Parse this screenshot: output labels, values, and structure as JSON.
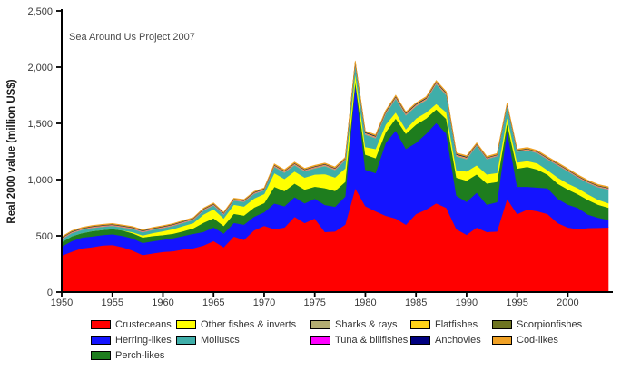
{
  "annotation": "Sea Around Us Project 2007",
  "colors": {
    "background": "#FFFFFF",
    "axis": "#000000",
    "tick_text": "#3A3A3A",
    "annotation_text": "#4A4A4A"
  },
  "chart_data": {
    "type": "area",
    "stacked": true,
    "title": "",
    "xlabel": "",
    "ylabel": "Real 2000 value (million US$)",
    "x_start": 1950,
    "x_end": 2004,
    "ylim": [
      0,
      2500
    ],
    "grid": false,
    "legend_position": "bottom",
    "y_tick_values": [
      0,
      500,
      1000,
      1500,
      2000,
      2500
    ],
    "y_tick_labels": [
      "0",
      "500",
      "1,000",
      "1,500",
      "2,000",
      "2,500"
    ],
    "x_tick_values": [
      1950,
      1955,
      1960,
      1965,
      1970,
      1975,
      1980,
      1985,
      1990,
      1995,
      2000
    ],
    "x_tick_labels": [
      "1950",
      "1955",
      "1960",
      "1965",
      "1970",
      "1975",
      "1980",
      "1985",
      "1990",
      "1995",
      "2000"
    ],
    "legend_columns": [
      [
        0,
        1,
        2
      ],
      [
        3,
        4
      ],
      [
        5,
        6
      ],
      [
        7,
        8
      ],
      [
        9,
        10
      ]
    ],
    "series": [
      {
        "name": "Crusteceans",
        "color": "#FF0000",
        "values": [
          325,
          360,
          390,
          400,
          415,
          420,
          400,
          370,
          330,
          345,
          358,
          364,
          380,
          390,
          415,
          455,
          400,
          495,
          465,
          550,
          590,
          560,
          575,
          670,
          615,
          655,
          535,
          540,
          600,
          925,
          765,
          720,
          680,
          655,
          600,
          695,
          735,
          790,
          750,
          560,
          510,
          575,
          535,
          540,
          830,
          695,
          735,
          720,
          695,
          615,
          575,
          560,
          570,
          572,
          575
        ]
      },
      {
        "name": "Herring-likes",
        "color": "#1414FF",
        "values": [
          80,
          95,
          95,
          95,
          92,
          95,
          100,
          108,
          108,
          108,
          108,
          116,
          119,
          129,
          121,
          121,
          121,
          121,
          135,
          121,
          121,
          229,
          189,
          175,
          175,
          176,
          240,
          220,
          250,
          930,
          323,
          338,
          647,
          782,
          674,
          633,
          674,
          715,
          660,
          297,
          293,
          310,
          243,
          260,
          606,
          242,
          202,
          210,
          229,
          216,
          203,
          189,
          120,
          90,
          68
        ]
      },
      {
        "name": "Perch-likes",
        "color": "#1E7D1E",
        "values": [
          41,
          42,
          40,
          48,
          46,
          46,
          49,
          46,
          48,
          46,
          41,
          40,
          43,
          49,
          81,
          81,
          68,
          81,
          81,
          81,
          81,
          148,
          135,
          121,
          122,
          107,
          150,
          140,
          130,
          25,
          135,
          134,
          95,
          108,
          135,
          162,
          135,
          121,
          130,
          161,
          189,
          162,
          188,
          180,
          68,
          162,
          176,
          160,
          121,
          134,
          135,
          121,
          130,
          115,
          108
        ]
      },
      {
        "name": "Other fishes & inverts",
        "color": "#FFFF00",
        "values": [
          0,
          0,
          0,
          0,
          0,
          0,
          0,
          10,
          19,
          27,
          35,
          41,
          46,
          46,
          73,
          81,
          67,
          81,
          81,
          81,
          81,
          122,
          108,
          108,
          107,
          108,
          125,
          120,
          120,
          68,
          67,
          81,
          67,
          54,
          40,
          54,
          54,
          48,
          60,
          67,
          81,
          81,
          81,
          80,
          54,
          54,
          53,
          55,
          40,
          54,
          53,
          54,
          50,
          45,
          40
        ]
      },
      {
        "name": "Molluscs",
        "color": "#3FAEA9",
        "values": [
          25,
          27,
          28,
          27,
          27,
          27,
          26,
          27,
          27,
          27,
          27,
          27,
          27,
          27,
          35,
          33,
          33,
          35,
          40,
          40,
          32,
          54,
          54,
          54,
          54,
          54,
          70,
          65,
          70,
          81,
          109,
          95,
          95,
          121,
          122,
          108,
          108,
          176,
          150,
          122,
          108,
          175,
          135,
          148,
          100,
          94,
          95,
          90,
          95,
          108,
          108,
          94,
          100,
          110,
          122
        ]
      },
      {
        "name": "Sharks & rays",
        "color": "#B3AD72",
        "values": [
          5,
          5,
          5,
          5,
          5,
          5,
          5,
          5,
          5,
          5,
          5,
          5,
          5,
          5,
          5,
          5,
          5,
          5,
          5,
          5,
          5,
          8,
          8,
          8,
          8,
          8,
          8,
          8,
          8,
          8,
          8,
          8,
          8,
          8,
          8,
          8,
          8,
          8,
          8,
          8,
          8,
          5,
          5,
          5,
          5,
          5,
          5,
          5,
          5,
          5,
          5,
          5,
          5,
          5,
          5
        ]
      },
      {
        "name": "Tuna & billfishes",
        "color": "#FF00FF",
        "values": [
          2,
          2,
          2,
          2,
          2,
          2,
          2,
          2,
          2,
          2,
          2,
          2,
          2,
          2,
          2,
          2,
          2,
          2,
          2,
          2,
          2,
          2,
          2,
          2,
          2,
          2,
          2,
          2,
          2,
          2,
          2,
          2,
          2,
          2,
          2,
          2,
          2,
          2,
          2,
          2,
          2,
          2,
          2,
          2,
          2,
          2,
          2,
          2,
          2,
          2,
          2,
          2,
          2,
          2,
          2
        ]
      },
      {
        "name": "Flatfishes",
        "color": "#FFD319",
        "values": [
          4,
          4,
          4,
          4,
          4,
          4,
          4,
          4,
          4,
          4,
          4,
          4,
          4,
          4,
          4,
          4,
          4,
          4,
          4,
          4,
          4,
          4,
          4,
          4,
          4,
          4,
          4,
          4,
          4,
          4,
          6,
          6,
          6,
          6,
          6,
          6,
          6,
          6,
          6,
          6,
          6,
          4,
          4,
          4,
          4,
          4,
          4,
          4,
          4,
          4,
          4,
          4,
          4,
          4,
          4
        ]
      },
      {
        "name": "Anchovies",
        "color": "#000080",
        "values": [
          3,
          3,
          3,
          3,
          3,
          3,
          3,
          3,
          3,
          3,
          3,
          3,
          3,
          3,
          3,
          3,
          3,
          3,
          3,
          3,
          3,
          3,
          3,
          3,
          3,
          3,
          3,
          3,
          3,
          3,
          5,
          5,
          5,
          5,
          5,
          5,
          5,
          5,
          5,
          5,
          5,
          3,
          3,
          3,
          3,
          3,
          3,
          3,
          3,
          3,
          3,
          3,
          3,
          3,
          3
        ]
      },
      {
        "name": "Scorpionfishes",
        "color": "#6E7421",
        "values": [
          3,
          3,
          3,
          3,
          3,
          3,
          3,
          3,
          3,
          3,
          3,
          3,
          3,
          3,
          3,
          3,
          3,
          3,
          3,
          3,
          3,
          3,
          3,
          3,
          3,
          3,
          3,
          3,
          3,
          3,
          3,
          3,
          3,
          3,
          3,
          3,
          3,
          3,
          3,
          3,
          3,
          3,
          3,
          3,
          3,
          3,
          3,
          3,
          3,
          3,
          3,
          3,
          3,
          3,
          3
        ]
      },
      {
        "name": "Cod-likes",
        "color": "#F0A125",
        "values": [
          5,
          5,
          5,
          5,
          5,
          5,
          5,
          5,
          5,
          5,
          5,
          5,
          5,
          5,
          5,
          5,
          5,
          5,
          5,
          5,
          5,
          8,
          8,
          8,
          8,
          8,
          8,
          8,
          8,
          8,
          8,
          8,
          8,
          8,
          8,
          8,
          8,
          8,
          8,
          8,
          8,
          8,
          8,
          8,
          8,
          8,
          8,
          8,
          8,
          8,
          8,
          8,
          8,
          8,
          8
        ]
      }
    ]
  }
}
